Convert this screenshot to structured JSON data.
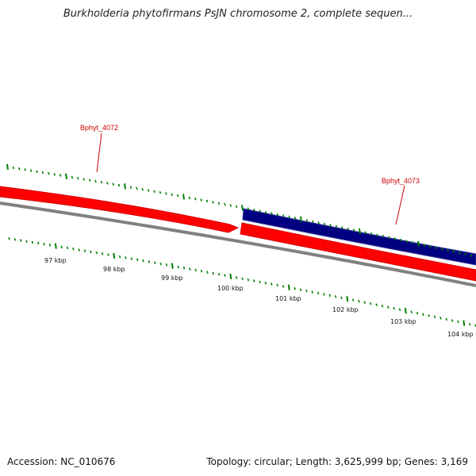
{
  "title": "Burkholderia phytofirmans PsJN chromosome 2, complete sequen...",
  "footer": {
    "accession": "Accession: NC_010676",
    "stats": "Topology: circular; Length: 3,625,999 bp; Genes: 3,169"
  },
  "genes": [
    {
      "name": "Bphyt_4072",
      "strand": "forward",
      "color": "#ff0000"
    },
    {
      "name": "Bphyt_4073",
      "strand": "reverse",
      "color": "#000080"
    }
  ],
  "ruler": {
    "unit": "kbp",
    "labels": [
      "97 kbp",
      "98 kbp",
      "99 kbp",
      "100 kbp",
      "101 kbp",
      "102 kbp",
      "103 kbp",
      "104 kbp"
    ],
    "tick_color": "#008000"
  },
  "colors": {
    "backbone": "#808080",
    "forward_gene": "#ff0000",
    "reverse_gene": "#000080",
    "label": "#cc0000"
  }
}
